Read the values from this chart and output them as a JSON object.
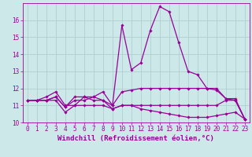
{
  "bg_color": "#cce8e8",
  "line_color": "#990099",
  "grid_color": "#aacccc",
  "xlabel": "Windchill (Refroidissement éolien,°C)",
  "xlabel_fontsize": 6.5,
  "tick_fontsize": 5.5,
  "ylim": [
    10.0,
    17.0
  ],
  "xlim": [
    -0.5,
    23.5
  ],
  "yticks": [
    10,
    11,
    12,
    13,
    14,
    15,
    16
  ],
  "xticks": [
    0,
    1,
    2,
    3,
    4,
    5,
    6,
    7,
    8,
    9,
    10,
    11,
    12,
    13,
    14,
    15,
    16,
    17,
    18,
    19,
    20,
    21,
    22,
    23
  ],
  "series": [
    {
      "x": [
        0,
        1,
        2,
        3,
        4,
        5,
        6,
        7,
        8,
        9,
        10,
        11,
        12,
        13,
        14,
        15,
        16,
        17,
        18,
        19,
        20,
        21,
        22,
        23
      ],
      "y": [
        11.3,
        11.3,
        11.3,
        11.5,
        10.9,
        11.3,
        11.3,
        11.5,
        11.3,
        11.0,
        11.8,
        11.9,
        12.0,
        12.0,
        12.0,
        12.0,
        12.0,
        12.0,
        12.0,
        12.0,
        12.0,
        11.4,
        11.3,
        10.2
      ]
    },
    {
      "x": [
        0,
        1,
        2,
        3,
        4,
        5,
        6,
        7,
        8,
        9,
        10,
        11,
        12,
        13,
        14,
        15,
        16,
        17,
        18,
        19,
        20,
        21,
        22,
        23
      ],
      "y": [
        11.3,
        11.3,
        11.3,
        11.3,
        10.6,
        11.0,
        11.0,
        11.0,
        11.0,
        10.8,
        11.0,
        11.0,
        11.0,
        11.0,
        11.0,
        11.0,
        11.0,
        11.0,
        11.0,
        11.0,
        11.0,
        11.3,
        11.3,
        10.2
      ]
    },
    {
      "x": [
        0,
        1,
        2,
        3,
        4,
        5,
        6,
        7,
        8,
        9,
        10,
        11,
        12,
        13,
        14,
        15,
        16,
        17,
        18,
        19,
        20,
        21,
        22,
        23
      ],
      "y": [
        11.3,
        11.3,
        11.3,
        11.5,
        10.9,
        11.5,
        11.5,
        11.3,
        11.3,
        10.8,
        11.0,
        11.0,
        10.8,
        10.7,
        10.6,
        10.5,
        10.4,
        10.3,
        10.3,
        10.3,
        10.4,
        10.5,
        10.6,
        10.2
      ]
    },
    {
      "x": [
        0,
        1,
        2,
        3,
        4,
        5,
        6,
        7,
        8,
        9,
        10,
        11,
        12,
        13,
        14,
        15,
        16,
        17,
        18,
        19,
        20,
        21,
        22,
        23
      ],
      "y": [
        11.3,
        11.3,
        11.5,
        11.8,
        11.0,
        11.0,
        11.5,
        11.5,
        11.8,
        11.0,
        15.7,
        13.1,
        13.5,
        15.4,
        16.8,
        16.5,
        14.7,
        13.0,
        12.8,
        12.0,
        11.9,
        11.4,
        11.4,
        10.2
      ]
    }
  ]
}
